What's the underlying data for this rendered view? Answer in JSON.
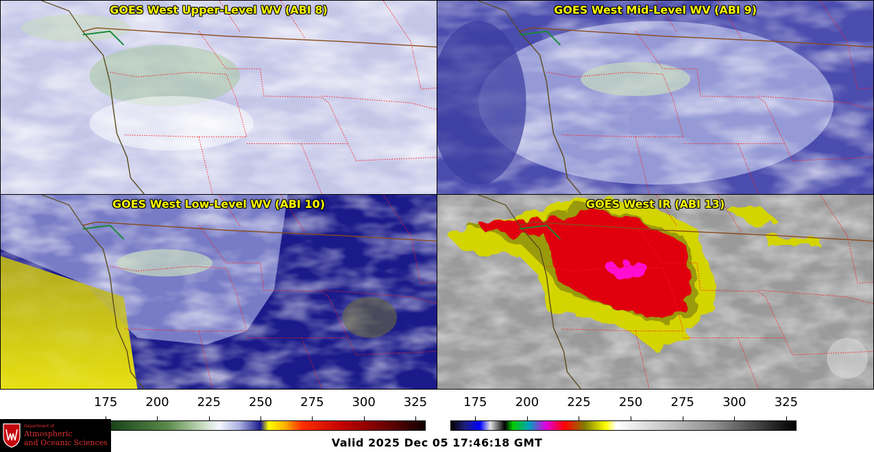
{
  "panels": [
    {
      "title": "GOES West Upper-Level WV (ABI 8)"
    },
    {
      "title": "GOES West Mid-Level WV (ABI 9)"
    },
    {
      "title": "GOES West Low-Level WV (ABI 10)"
    },
    {
      "title": "GOES West IR (ABI 13)"
    }
  ],
  "colorbars": {
    "wv": {
      "ticks": [
        "175",
        "200",
        "225",
        "250",
        "275",
        "300",
        "325"
      ],
      "range": [
        162,
        330
      ],
      "stops": [
        {
          "v": 162,
          "c": "#0a1a0a"
        },
        {
          "v": 180,
          "c": "#1e4a1e"
        },
        {
          "v": 205,
          "c": "#5a8a4a"
        },
        {
          "v": 222,
          "c": "#c8dcc0"
        },
        {
          "v": 230,
          "c": "#f4f6ff"
        },
        {
          "v": 240,
          "c": "#a8aee0"
        },
        {
          "v": 250,
          "c": "#1a1a8a"
        },
        {
          "v": 254,
          "c": "#ffff00"
        },
        {
          "v": 262,
          "c": "#ffb000"
        },
        {
          "v": 270,
          "c": "#ff3000"
        },
        {
          "v": 290,
          "c": "#c00000"
        },
        {
          "v": 310,
          "c": "#700000"
        },
        {
          "v": 330,
          "c": "#100000"
        }
      ]
    },
    "ir": {
      "ticks": [
        "175",
        "200",
        "225",
        "250",
        "275",
        "300",
        "325"
      ],
      "range": [
        163,
        330
      ],
      "stops": [
        {
          "v": 163,
          "c": "#000000"
        },
        {
          "v": 170,
          "c": "#202080"
        },
        {
          "v": 177,
          "c": "#0000ff"
        },
        {
          "v": 182,
          "c": "#e0e0e0"
        },
        {
          "v": 189,
          "c": "#000000"
        },
        {
          "v": 193,
          "c": "#00cc00"
        },
        {
          "v": 201,
          "c": "#00a0c0"
        },
        {
          "v": 209,
          "c": "#e000e0"
        },
        {
          "v": 218,
          "c": "#ff0000"
        },
        {
          "v": 228,
          "c": "#808000"
        },
        {
          "v": 238,
          "c": "#ffff00"
        },
        {
          "v": 243,
          "c": "#ffffff"
        },
        {
          "v": 290,
          "c": "#909090"
        },
        {
          "v": 330,
          "c": "#000000"
        }
      ]
    }
  },
  "logo": {
    "dept": "Department of",
    "line1": "Atmospheric",
    "line2": "and Oceanic Sciences"
  },
  "valid_time": "Valid 2025 Dec 05 17:46:18 GMT"
}
